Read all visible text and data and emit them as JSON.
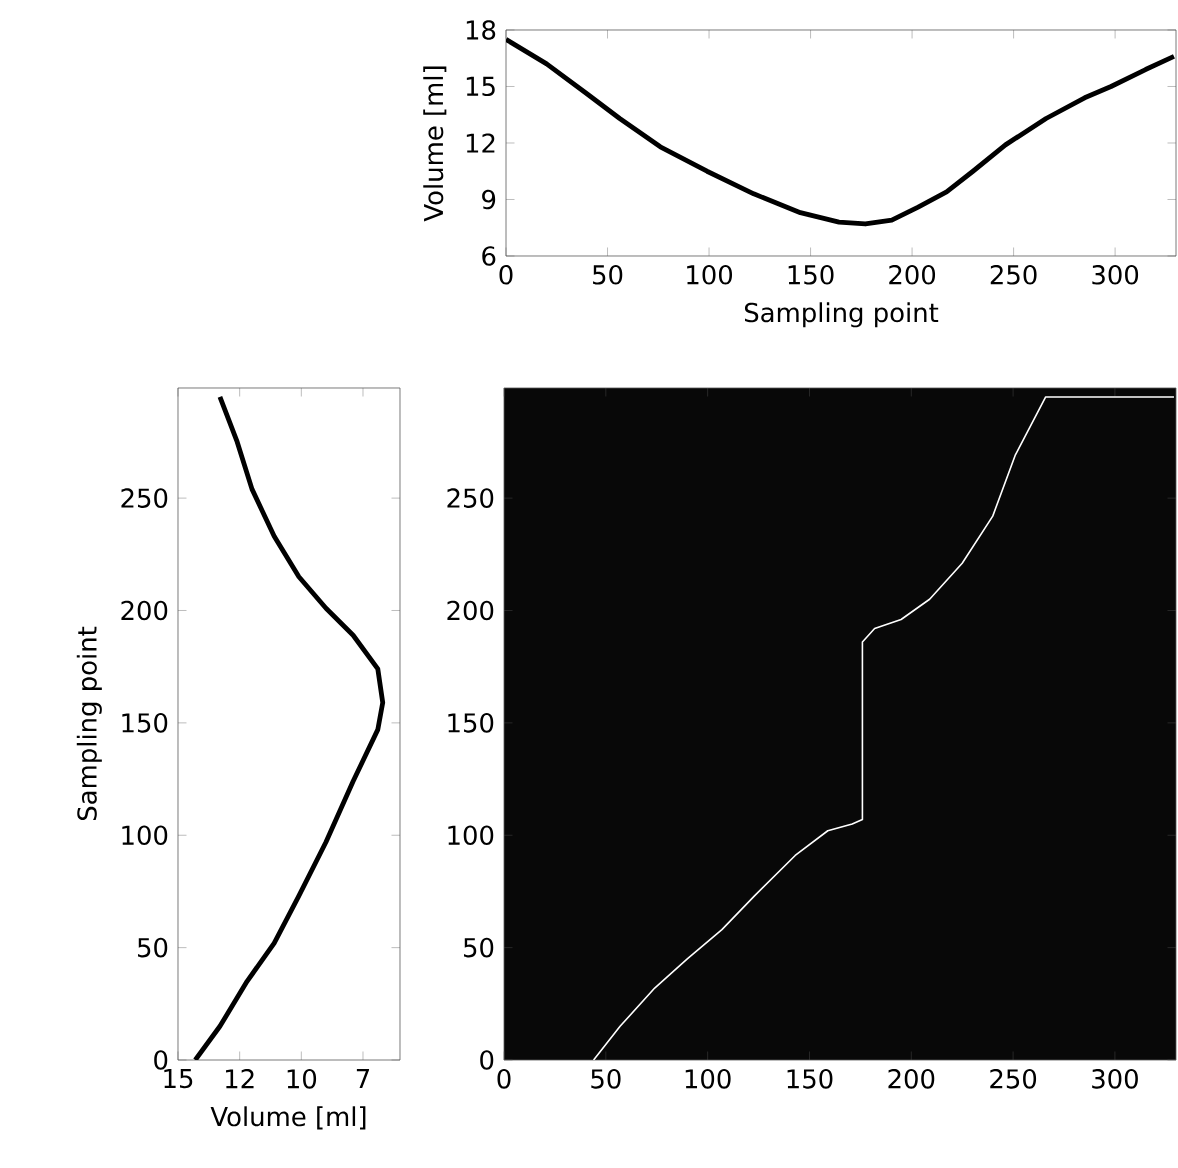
{
  "chart_data": [
    {
      "type": "line",
      "xlabel": "Sampling point",
      "ylabel": "Volume [ml]",
      "xlim": [
        0,
        330
      ],
      "ylim": [
        6,
        18
      ],
      "xticks": [
        0,
        50,
        100,
        150,
        200,
        250,
        300
      ],
      "yticks": [
        6,
        9,
        12,
        15,
        18
      ],
      "series": [
        {
          "color": "#000000",
          "x": [
            0,
            20,
            40,
            56,
            76,
            99,
            122,
            145,
            164,
            177,
            190,
            203,
            217,
            230,
            246,
            266,
            285,
            298,
            315,
            329
          ],
          "values": [
            17.5,
            16.2,
            14.6,
            13.3,
            11.8,
            10.5,
            9.3,
            8.3,
            7.8,
            7.7,
            7.9,
            8.6,
            9.4,
            10.5,
            11.9,
            13.3,
            14.4,
            15.0,
            15.9,
            16.6
          ]
        }
      ]
    },
    {
      "type": "line",
      "xlabel": "Volume [ml]",
      "ylabel": "Sampling point",
      "xlim": [
        15,
        6
      ],
      "ylim": [
        0,
        299
      ],
      "xticks": [
        15,
        {
          "value": 12.5,
          "label": "12"
        },
        10,
        {
          "value": 7.5,
          "label": "7"
        }
      ],
      "yticks": [
        0,
        50,
        100,
        150,
        200,
        250
      ],
      "series": [
        {
          "color": "#000000",
          "x": [
            14.3,
            13.3,
            12.2,
            11.1,
            10.1,
            9.0,
            7.9,
            6.9,
            6.7,
            6.9,
            7.9,
            9.0,
            10.1,
            11.1,
            12.0,
            12.6,
            13.3
          ],
          "values": [
            0,
            15,
            35,
            52,
            73,
            97,
            124,
            147,
            159,
            174,
            189,
            201,
            215,
            233,
            254,
            275,
            295
          ]
        }
      ]
    },
    {
      "type": "line",
      "xlim": [
        0,
        330
      ],
      "ylim": [
        0,
        299
      ],
      "xticks": [
        0,
        50,
        100,
        150,
        200,
        250,
        300
      ],
      "yticks": [
        0,
        50,
        100,
        150,
        200,
        250
      ],
      "series": [
        {
          "color": "#ffffff",
          "x": [
            44,
            57,
            74,
            90,
            107,
            123,
            143,
            159,
            171,
            176,
            176,
            182,
            195,
            209,
            225,
            240,
            251,
            266,
            329
          ],
          "values": [
            0,
            15,
            32,
            45,
            58,
            73,
            91,
            102,
            105,
            107,
            186,
            192,
            196,
            205,
            221,
            242,
            269,
            295,
            295
          ]
        }
      ]
    }
  ]
}
